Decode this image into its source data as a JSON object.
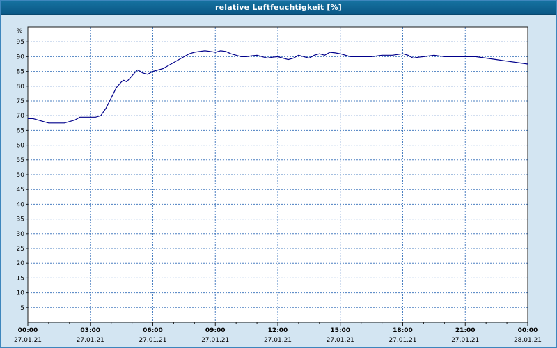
{
  "window": {
    "title": "relative Luftfeuchtigkeit [%]"
  },
  "colors": {
    "titlebar_bg": "#0d6394",
    "page_bg": "#d3e5f2",
    "plot_bg": "#ffffff",
    "plot_border": "#1a1a1a",
    "grid": "#4a7fc1",
    "series_line": "#00008b",
    "tick_text": "#000000",
    "window_border": "#3e86bd"
  },
  "chart_data": {
    "type": "line",
    "title": "relative Luftfeuchtigkeit [%]",
    "xlabel": "",
    "ylabel": "%",
    "grid": "dashed",
    "legend": "none",
    "xlim_hours": [
      0,
      24
    ],
    "ylim": [
      0,
      100
    ],
    "y_ticks": [
      5,
      10,
      15,
      20,
      25,
      30,
      35,
      40,
      45,
      50,
      55,
      60,
      65,
      70,
      75,
      80,
      85,
      90,
      95
    ],
    "x_ticks": [
      {
        "hour": 0,
        "time": "00:00",
        "date": "27.01.21"
      },
      {
        "hour": 3,
        "time": "03:00",
        "date": "27.01.21"
      },
      {
        "hour": 6,
        "time": "06:00",
        "date": "27.01.21"
      },
      {
        "hour": 9,
        "time": "09:00",
        "date": "27.01.21"
      },
      {
        "hour": 12,
        "time": "12:00",
        "date": "27.01.21"
      },
      {
        "hour": 15,
        "time": "15:00",
        "date": "27.01.21"
      },
      {
        "hour": 18,
        "time": "18:00",
        "date": "27.01.21"
      },
      {
        "hour": 21,
        "time": "21:00",
        "date": "27.01.21"
      },
      {
        "hour": 24,
        "time": "00:00",
        "date": "28.01.21"
      }
    ],
    "series": [
      {
        "name": "relative Luftfeuchtigkeit",
        "color": "#00008b",
        "x_hours": [
          0,
          0.25,
          0.5,
          0.75,
          1,
          1.25,
          1.5,
          1.75,
          2,
          2.25,
          2.5,
          2.75,
          3,
          3.25,
          3.5,
          3.75,
          4,
          4.25,
          4.5,
          4.6,
          4.75,
          5,
          5.25,
          5.4,
          5.5,
          5.75,
          6,
          6.25,
          6.5,
          6.75,
          7,
          7.25,
          7.5,
          7.75,
          8,
          8.25,
          8.5,
          8.75,
          9,
          9.25,
          9.5,
          9.75,
          10,
          10.25,
          10.5,
          10.75,
          11,
          11.25,
          11.5,
          11.75,
          12,
          12.25,
          12.5,
          12.75,
          13,
          13.25,
          13.5,
          13.75,
          14,
          14.25,
          14.5,
          14.75,
          15,
          15.25,
          15.5,
          15.75,
          16,
          16.5,
          17,
          17.5,
          18,
          18.25,
          18.5,
          18.75,
          19,
          19.5,
          20,
          20.5,
          21,
          21.5,
          22,
          22.5,
          23,
          23.5,
          24
        ],
        "values": [
          69,
          69,
          68.5,
          68,
          67.5,
          67.5,
          67.5,
          67.5,
          68,
          68.5,
          69.5,
          69.5,
          69.5,
          69.5,
          70,
          72.5,
          76,
          79.5,
          81.5,
          82,
          81.5,
          83.5,
          85.5,
          85,
          84.5,
          84,
          85,
          85.5,
          86,
          87,
          88,
          89,
          90,
          91,
          91.5,
          91.8,
          92,
          91.8,
          91.5,
          92,
          91.8,
          91,
          90.5,
          90,
          90,
          90.3,
          90.5,
          90,
          89.5,
          89.8,
          90,
          89.5,
          89,
          89.5,
          90.5,
          90,
          89.5,
          90.5,
          91,
          90.5,
          91.5,
          91.3,
          91,
          90.5,
          90,
          90,
          90,
          90,
          90.5,
          90.5,
          91,
          90.5,
          89.5,
          89.8,
          90,
          90.5,
          90,
          90,
          90,
          90,
          89.5,
          89,
          88.5,
          88,
          87.5
        ]
      }
    ]
  }
}
